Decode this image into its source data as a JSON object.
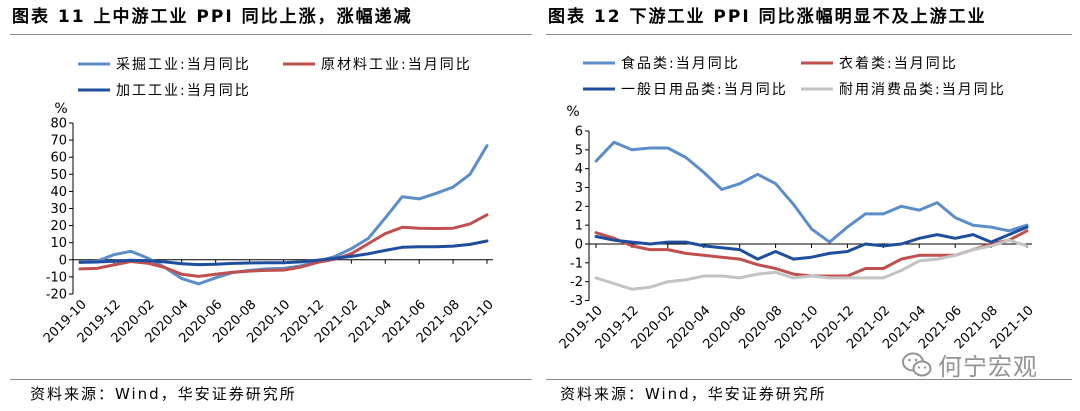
{
  "chart_data": [
    {
      "type": "line",
      "title": "图表 11 上中游工业 PPI 同比上涨，涨幅递减",
      "ylabel": "%",
      "ylim": [
        -20,
        80
      ],
      "yticks": [
        -20,
        -10,
        0,
        10,
        20,
        30,
        40,
        50,
        60,
        70,
        80
      ],
      "xtick_labels": [
        "2019-10",
        "2019-12",
        "2020-02",
        "2020-04",
        "2020-06",
        "2020-08",
        "2020-10",
        "2020-12",
        "2021-02",
        "2021-04",
        "2021-06",
        "2021-08",
        "2021-10"
      ],
      "points_per_label": 2,
      "grid": false,
      "series": [
        {
          "name": "采掘工业:当月同比",
          "color": "#5B8DCB",
          "values": [
            -1.2,
            -0.8,
            3.0,
            5.0,
            1.0,
            -4.5,
            -11.0,
            -14.1,
            -10.5,
            -7.5,
            -6.2,
            -5.3,
            -5.0,
            -3.6,
            -1.0,
            1.8,
            6.5,
            12.5,
            24.5,
            36.9,
            35.6,
            38.9,
            42.5,
            50.0,
            66.7
          ]
        },
        {
          "name": "原材料工业:当月同比",
          "color": "#C0504D",
          "values": [
            -5.3,
            -5.0,
            -3.0,
            -1.0,
            -2.0,
            -4.5,
            -8.5,
            -9.7,
            -8.5,
            -7.3,
            -6.6,
            -6.2,
            -6.0,
            -4.3,
            -1.5,
            0.3,
            3.5,
            9.5,
            15.3,
            19.0,
            18.5,
            18.3,
            18.5,
            21.0,
            26.3
          ]
        },
        {
          "name": "加工工业:当月同比",
          "color": "#1F4E9E",
          "values": [
            -1.5,
            -1.3,
            -0.8,
            -0.3,
            -0.6,
            -1.2,
            -2.3,
            -2.8,
            -2.6,
            -2.1,
            -1.9,
            -1.7,
            -1.7,
            -1.2,
            -0.3,
            0.8,
            2.0,
            3.5,
            5.5,
            7.3,
            7.6,
            7.6,
            8.0,
            9.0,
            11.0
          ]
        }
      ],
      "source": "资料来源：Wind，华安证券研究所"
    },
    {
      "type": "line",
      "title": "图表 12 下游工业 PPI 同比涨幅明显不及上游工业",
      "ylabel": "%",
      "ylim": [
        -3,
        6
      ],
      "yticks": [
        -3,
        -2,
        -1,
        0,
        1,
        2,
        3,
        4,
        5,
        6
      ],
      "xtick_labels": [
        "2019-10",
        "2019-12",
        "2020-02",
        "2020-04",
        "2020-06",
        "2020-08",
        "2020-10",
        "2020-12",
        "2021-02",
        "2021-04",
        "2021-06",
        "2021-08",
        "2021-10"
      ],
      "points_per_label": 2,
      "grid": false,
      "series": [
        {
          "name": "食品类:当月同比",
          "color": "#5B8DCB",
          "values": [
            4.4,
            5.4,
            5.0,
            5.1,
            5.1,
            4.6,
            3.8,
            2.9,
            3.2,
            3.7,
            3.2,
            2.1,
            0.8,
            0.1,
            0.9,
            1.6,
            1.6,
            2.0,
            1.8,
            2.2,
            1.4,
            1.0,
            0.9,
            0.7,
            1.0
          ]
        },
        {
          "name": "衣着类:当月同比",
          "color": "#C0504D",
          "values": [
            0.6,
            0.3,
            -0.1,
            -0.3,
            -0.3,
            -0.5,
            -0.6,
            -0.7,
            -0.8,
            -1.1,
            -1.3,
            -1.6,
            -1.7,
            -1.7,
            -1.7,
            -1.3,
            -1.3,
            -0.8,
            -0.6,
            -0.6,
            -0.6,
            -0.3,
            0.0,
            0.2,
            0.7
          ]
        },
        {
          "name": "一般日用品类:当月同比",
          "color": "#1F4E9E",
          "values": [
            0.4,
            0.2,
            0.1,
            0.0,
            0.1,
            0.1,
            -0.1,
            -0.2,
            -0.3,
            -0.8,
            -0.4,
            -0.8,
            -0.7,
            -0.5,
            -0.4,
            0.0,
            -0.1,
            0.0,
            0.3,
            0.5,
            0.3,
            0.5,
            0.1,
            0.5,
            0.9
          ]
        },
        {
          "name": "耐用消费品类:当月同比",
          "color": "#C3C3C3",
          "values": [
            -1.8,
            -2.1,
            -2.4,
            -2.3,
            -2.0,
            -1.9,
            -1.7,
            -1.7,
            -1.8,
            -1.6,
            -1.5,
            -1.8,
            -1.7,
            -1.8,
            -1.8,
            -1.8,
            -1.8,
            -1.4,
            -0.9,
            -0.8,
            -0.6,
            -0.3,
            -0.1,
            0.2,
            -0.1
          ]
        }
      ],
      "source": "资料来源：Wind，华安证券研究所"
    }
  ],
  "watermark": {
    "text": "何宁宏观",
    "icon": "wechat-logo-icon"
  }
}
